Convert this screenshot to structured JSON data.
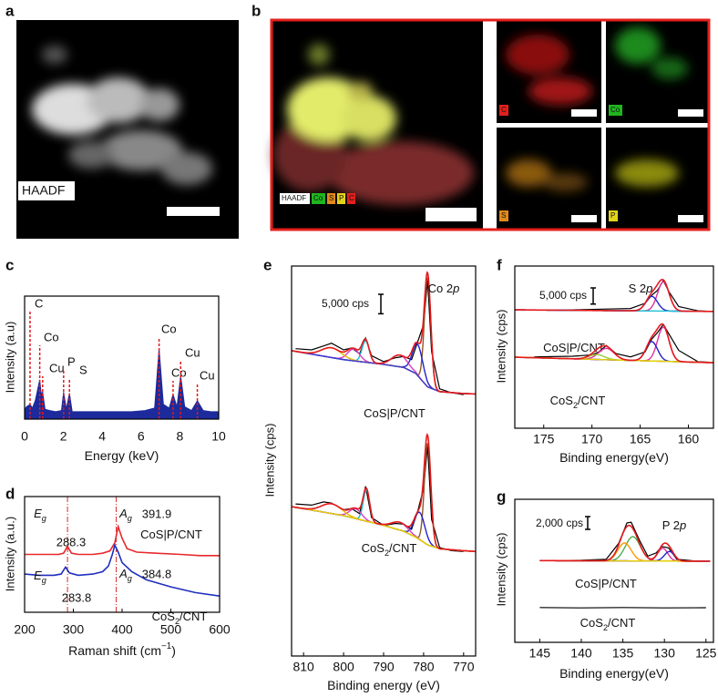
{
  "panel_labels": [
    "a",
    "b",
    "c",
    "d",
    "e",
    "f",
    "g"
  ],
  "images": {
    "a": {
      "label": "HAADF"
    },
    "b": {
      "legend": [
        "HAADF",
        "Co",
        "S",
        "P",
        "C"
      ],
      "maps": [
        "C",
        "Co",
        "S",
        "P"
      ]
    }
  },
  "chart_data": [
    {
      "type": "spectrum",
      "xlabel": "Energy (keV)",
      "ylabel": "Intensity (a.u)",
      "xlim": [
        0,
        10
      ],
      "xticks": [
        0,
        2,
        4,
        6,
        8,
        10
      ],
      "ylim": [
        0,
        100
      ],
      "color": "#1c2a9c",
      "peak_color": "#e31a1c",
      "x": [
        0,
        0.1,
        0.28,
        0.4,
        0.55,
        0.78,
        0.86,
        0.93,
        1.05,
        1.3,
        1.6,
        1.9,
        2.01,
        2.15,
        2.31,
        2.45,
        2.8,
        3.5,
        4.5,
        5.5,
        6.2,
        6.7,
        6.93,
        7.15,
        7.45,
        7.65,
        7.85,
        8.04,
        8.25,
        8.6,
        8.9,
        9.2,
        9.6,
        10
      ],
      "values": [
        8,
        10,
        12,
        9,
        15,
        32,
        20,
        22,
        8,
        7,
        6,
        7,
        22,
        8,
        21,
        6,
        6,
        6,
        6,
        6,
        7,
        9,
        57,
        12,
        9,
        20,
        10,
        35,
        10,
        7,
        15,
        7,
        6,
        6
      ],
      "peaks": [
        {
          "label": "C",
          "x": 0.28
        },
        {
          "label": "Co",
          "x": 0.78
        },
        {
          "label": "Cu",
          "x": 0.93
        },
        {
          "label": "P",
          "x": 2.01
        },
        {
          "label": "S",
          "x": 2.31
        },
        {
          "label": "Co",
          "x": 6.93
        },
        {
          "label": "Co",
          "x": 7.65
        },
        {
          "label": "Cu",
          "x": 8.04
        },
        {
          "label": "Cu",
          "x": 8.9
        }
      ]
    },
    {
      "type": "raman",
      "xlabel": "Raman shift (cm−1)",
      "ylabel": "Intensity (a.u.)",
      "xlim": [
        200,
        600
      ],
      "xticks": [
        200,
        300,
        400,
        500,
        600
      ],
      "ylim": [
        0,
        100
      ],
      "vlines": [
        288,
        388
      ],
      "vline_color": "#d62728",
      "annotations": [
        "Eg",
        "288.3",
        "Ag",
        "391.9",
        "Eg",
        "283.8",
        "Ag",
        "384.8"
      ],
      "series": [
        {
          "name": "CoS|P/CNT",
          "color": "#e8282b",
          "x": [
            200,
            220,
            250,
            270,
            280,
            288,
            296,
            310,
            340,
            360,
            375,
            385,
            392,
            400,
            410,
            430,
            470,
            520,
            560,
            600
          ],
          "values": [
            50,
            50,
            50,
            50,
            51,
            57,
            51,
            50,
            50,
            51,
            53,
            60,
            74,
            64,
            55,
            52,
            51,
            50,
            49,
            49
          ]
        },
        {
          "name": "CoS2/CNT",
          "color": "#1f2fbf",
          "x": [
            200,
            230,
            260,
            275,
            284,
            292,
            310,
            340,
            360,
            372,
            380,
            385,
            392,
            400,
            420,
            450,
            500,
            550,
            600
          ],
          "values": [
            33,
            32,
            32,
            33,
            39,
            34,
            32,
            33,
            35,
            40,
            50,
            58,
            52,
            43,
            35,
            28,
            22,
            17,
            14
          ]
        }
      ]
    },
    {
      "type": "xps",
      "title": "Co 2p",
      "xlabel": "Binding energy (eV)",
      "ylabel": "Intensity (cps)",
      "xlim": [
        813,
        767
      ],
      "xticks": [
        810,
        800,
        790,
        780,
        770
      ],
      "ylim": [
        0,
        100000
      ],
      "scalebar": {
        "value": 5000,
        "label": "5,000 cps"
      },
      "envelope_color": "#e41a1c",
      "series": [
        {
          "name": "CoS|P/CNT",
          "color": "#000000",
          "background_color": "#3b3bd6",
          "x": [
            812,
            808,
            805,
            803,
            800,
            798,
            796,
            794.5,
            793,
            790,
            787,
            785,
            783,
            781.5,
            780,
            779,
            778,
            776,
            773,
            770
          ],
          "values": [
            78800,
            78500,
            79500,
            80200,
            78500,
            79000,
            77500,
            81500,
            77000,
            75500,
            76500,
            76800,
            76000,
            80500,
            85000,
            96500,
            78000,
            68500,
            67500,
            67000
          ],
          "background": {
            "x": [
              813,
              800,
              790,
              785,
              782,
              779,
              776,
              770,
              767
            ],
            "values": [
              78300,
              76000,
              74800,
              74000,
              72500,
              69000,
              67800,
              67300,
              67200
            ]
          },
          "components": [
            {
              "center": 779,
              "height": 28000,
              "sigma": 0.8,
              "color": "#8b5a2b"
            },
            {
              "center": 781.5,
              "height": 8000,
              "sigma": 1.3,
              "color": "#2222cc"
            },
            {
              "center": 786,
              "height": 3000,
              "sigma": 2,
              "color": "#d63fbf"
            },
            {
              "center": 794.5,
              "height": 5500,
              "sigma": 0.9,
              "color": "#19b8d0"
            },
            {
              "center": 797.5,
              "height": 3000,
              "sigma": 1.5,
              "color": "#d63fbf"
            },
            {
              "center": 803,
              "height": 2500,
              "sigma": 2.5,
              "color": "#e6b800"
            }
          ]
        },
        {
          "name": "CoS2/CNT",
          "color": "#000000",
          "background_color": "#e6d200",
          "x": [
            812,
            808,
            805,
            803,
            800,
            798,
            796,
            794.5,
            793,
            790,
            787,
            785,
            783,
            781.5,
            780,
            779,
            778,
            776,
            773,
            770
          ],
          "values": [
            39000,
            38700,
            39500,
            39200,
            37500,
            37800,
            36500,
            43500,
            35500,
            33500,
            34000,
            33800,
            32500,
            37000,
            43000,
            54000,
            35000,
            27800,
            27000,
            26800
          ],
          "background": {
            "x": [
              813,
              800,
              790,
              785,
              782,
              779,
              776,
              770,
              767
            ],
            "values": [
              38300,
              36000,
              33500,
              32000,
              30500,
              28500,
              27500,
              27000,
              26800
            ]
          },
          "components": [
            {
              "center": 779,
              "height": 26000,
              "sigma": 0.8,
              "color": "#8b5a2b"
            },
            {
              "center": 781,
              "height": 7000,
              "sigma": 1.3,
              "color": "#2222cc"
            },
            {
              "center": 786,
              "height": 2000,
              "sigma": 2,
              "color": "#d63fbf"
            },
            {
              "center": 794.3,
              "height": 8000,
              "sigma": 0.8,
              "color": "#19b8d0"
            },
            {
              "center": 797,
              "height": 2500,
              "sigma": 1.5,
              "color": "#d63fbf"
            },
            {
              "center": 803,
              "height": 2500,
              "sigma": 2.5,
              "color": "#e6b800"
            }
          ]
        }
      ]
    },
    {
      "type": "xps",
      "title": "S 2p",
      "xlabel": "Binding energy(eV)",
      "ylabel": "Intensity (cps)",
      "xlim": [
        178,
        157.4
      ],
      "xticks": [
        175,
        170,
        165,
        160
      ],
      "ylim": [
        0,
        50000
      ],
      "scalebar": {
        "value": 5000,
        "label": "5,000 cps"
      },
      "envelope_color": "#e41a1c",
      "series": [
        {
          "name": "CoS|P/CNT",
          "color": "#000000",
          "background_color": "#19c4d6",
          "x": [
            176,
            172,
            169,
            166,
            164.5,
            163.8,
            163.2,
            162.6,
            162,
            161,
            159,
            157.5
          ],
          "values": [
            36400,
            36500,
            36700,
            36900,
            38500,
            41000,
            42500,
            45500,
            42000,
            37500,
            36200,
            36000
          ],
          "background": {
            "x": [
              178,
              157.4
            ],
            "values": [
              36500,
              36000
            ]
          },
          "components": [
            {
              "center": 162.6,
              "height": 9000,
              "sigma": 0.6,
              "color": "#e0339b"
            },
            {
              "center": 163.8,
              "height": 4500,
              "sigma": 0.6,
              "color": "#2222cc"
            }
          ]
        },
        {
          "name": "CoS2/CNT",
          "color": "#000000",
          "background_color": "#e6d200",
          "x": [
            176,
            172,
            170,
            169.3,
            168.5,
            167.5,
            166,
            164.5,
            163.8,
            163.2,
            162.6,
            162,
            161,
            159,
            157.5
          ],
          "values": [
            22000,
            22200,
            22600,
            23500,
            25500,
            23000,
            22000,
            23500,
            27500,
            29500,
            32000,
            29000,
            24000,
            20500,
            20300
          ],
          "background": {
            "x": [
              178,
              157.4
            ],
            "values": [
              21900,
              20200
            ]
          },
          "components": [
            {
              "center": 162.6,
              "height": 10500,
              "sigma": 0.6,
              "color": "#e0339b"
            },
            {
              "center": 163.8,
              "height": 6000,
              "sigma": 0.6,
              "color": "#2222cc"
            },
            {
              "center": 168.5,
              "height": 3500,
              "sigma": 0.8,
              "color": "#e0339b"
            },
            {
              "center": 169.5,
              "height": 1500,
              "sigma": 0.8,
              "color": "#9acd32"
            }
          ]
        }
      ]
    },
    {
      "type": "xps",
      "title": "P 2p",
      "xlabel": "Binding energy(eV)",
      "ylabel": "Intensity (cps)",
      "xlim": [
        148,
        124.1
      ],
      "xticks": [
        145,
        140,
        135,
        130,
        125
      ],
      "ylim": [
        0,
        22400
      ],
      "scalebar": {
        "value": 2000,
        "label": "2,000 cps"
      },
      "envelope_color": "#e41a1c",
      "series": [
        {
          "name": "CoS|P/CNT",
          "color": "#000000",
          "background_color": "#e6d200",
          "x": [
            144,
            140,
            137,
            135.5,
            134.5,
            134,
            133,
            132,
            131,
            130.3,
            129.5,
            128.5,
            126,
            124.5
          ],
          "values": [
            12800,
            12850,
            13000,
            15500,
            18700,
            18800,
            16000,
            13500,
            14000,
            15000,
            14800,
            13000,
            12700,
            12700
          ],
          "background": {
            "x": [
              145,
              124.5
            ],
            "values": [
              12800,
              12700
            ]
          },
          "components": [
            {
              "center": 133.8,
              "height": 3800,
              "sigma": 0.9,
              "color": "#4caf50"
            },
            {
              "center": 134.8,
              "height": 2800,
              "sigma": 0.8,
              "color": "#ff9800"
            },
            {
              "center": 130.2,
              "height": 2000,
              "sigma": 0.6,
              "color": "#e0339b"
            },
            {
              "center": 129.4,
              "height": 1500,
              "sigma": 0.6,
              "color": "#2222cc"
            }
          ]
        },
        {
          "name": "CoS2/CNT",
          "color": "#000000",
          "x": [
            145,
            140,
            135,
            130,
            125
          ],
          "values": [
            5450,
            5400,
            5450,
            5400,
            5420
          ]
        }
      ]
    }
  ]
}
